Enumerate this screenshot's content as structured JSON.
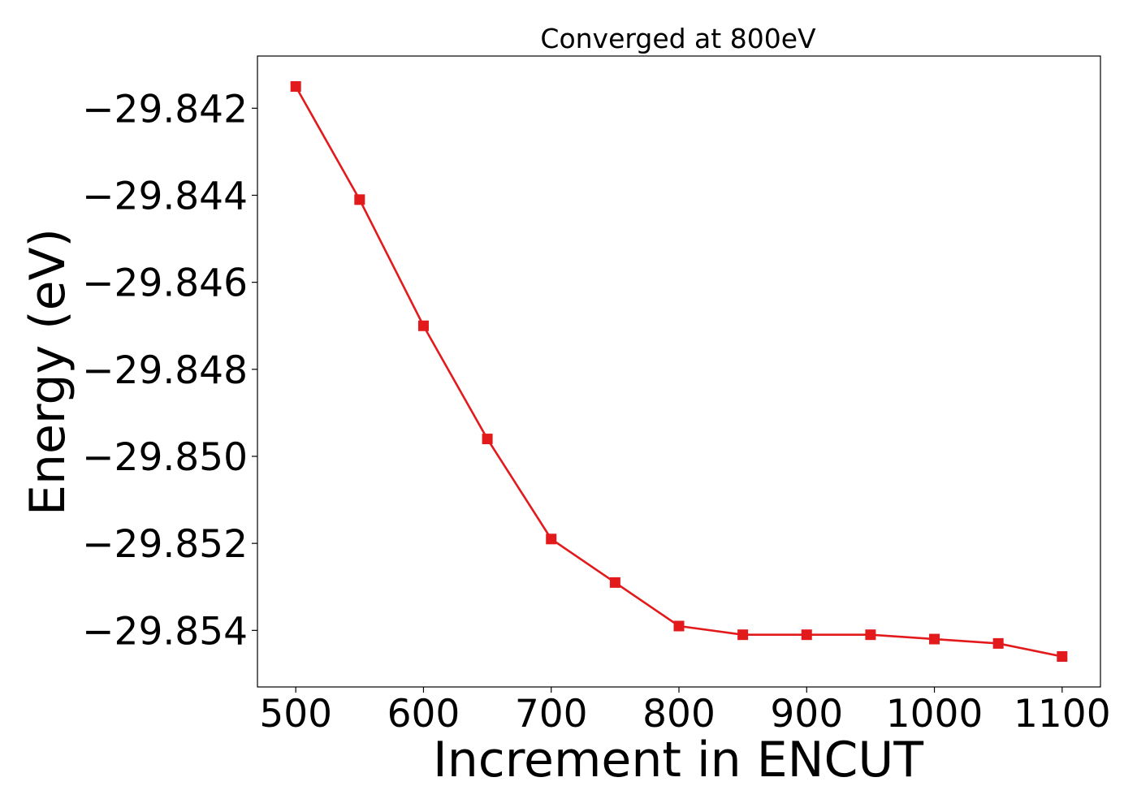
{
  "chart_data": {
    "type": "line",
    "title": "Converged at 800eV",
    "xlabel": "Increment in ENCUT",
    "ylabel": "Energy (eV)",
    "x": [
      500,
      550,
      600,
      650,
      700,
      750,
      800,
      850,
      900,
      950,
      1000,
      1050,
      1100
    ],
    "xticks": [
      500,
      600,
      700,
      800,
      900,
      1000,
      1100
    ],
    "yticks": [
      -29.842,
      -29.844,
      -29.846,
      -29.848,
      -29.85,
      -29.852,
      -29.854
    ],
    "xlim": [
      470,
      1130
    ],
    "ylim": [
      -29.8553,
      -29.8408
    ],
    "grid": false,
    "series": [
      {
        "color": "#e31a1c",
        "marker": "square",
        "values": [
          -29.8415,
          -29.8441,
          -29.847,
          -29.8496,
          -29.8519,
          -29.8529,
          -29.8539,
          -29.8541,
          -29.8541,
          -29.8541,
          -29.8542,
          -29.8543,
          -29.8546
        ]
      }
    ]
  }
}
